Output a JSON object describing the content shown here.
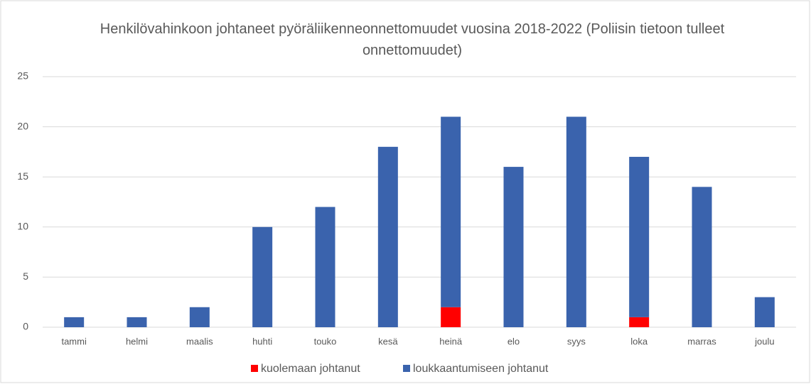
{
  "chart_data": {
    "type": "bar",
    "stacked": true,
    "title": "Henkilövahinkoon johtaneet pyöräliikenneonnettomuudet  vuosina 2018-2022 (Poliisin tietoon tulleet onnettomuudet)",
    "categories": [
      "tammi",
      "helmi",
      "maalis",
      "huhti",
      "touko",
      "kesä",
      "heinä",
      "elo",
      "syys",
      "loka",
      "marras",
      "joulu"
    ],
    "series": [
      {
        "name": "kuolemaan johtanut",
        "color": "#ff0000",
        "values": [
          0,
          0,
          0,
          0,
          0,
          0,
          2,
          0,
          0,
          1,
          0,
          0
        ]
      },
      {
        "name": "loukkaantumiseen johtanut",
        "color": "#3a63ad",
        "values": [
          1,
          1,
          2,
          10,
          12,
          18,
          19,
          16,
          21,
          16,
          14,
          3
        ]
      }
    ],
    "ylim": [
      0,
      25
    ],
    "yticks": [
      0,
      5,
      10,
      15,
      20,
      25
    ],
    "grid": true,
    "legend": "bottom"
  }
}
